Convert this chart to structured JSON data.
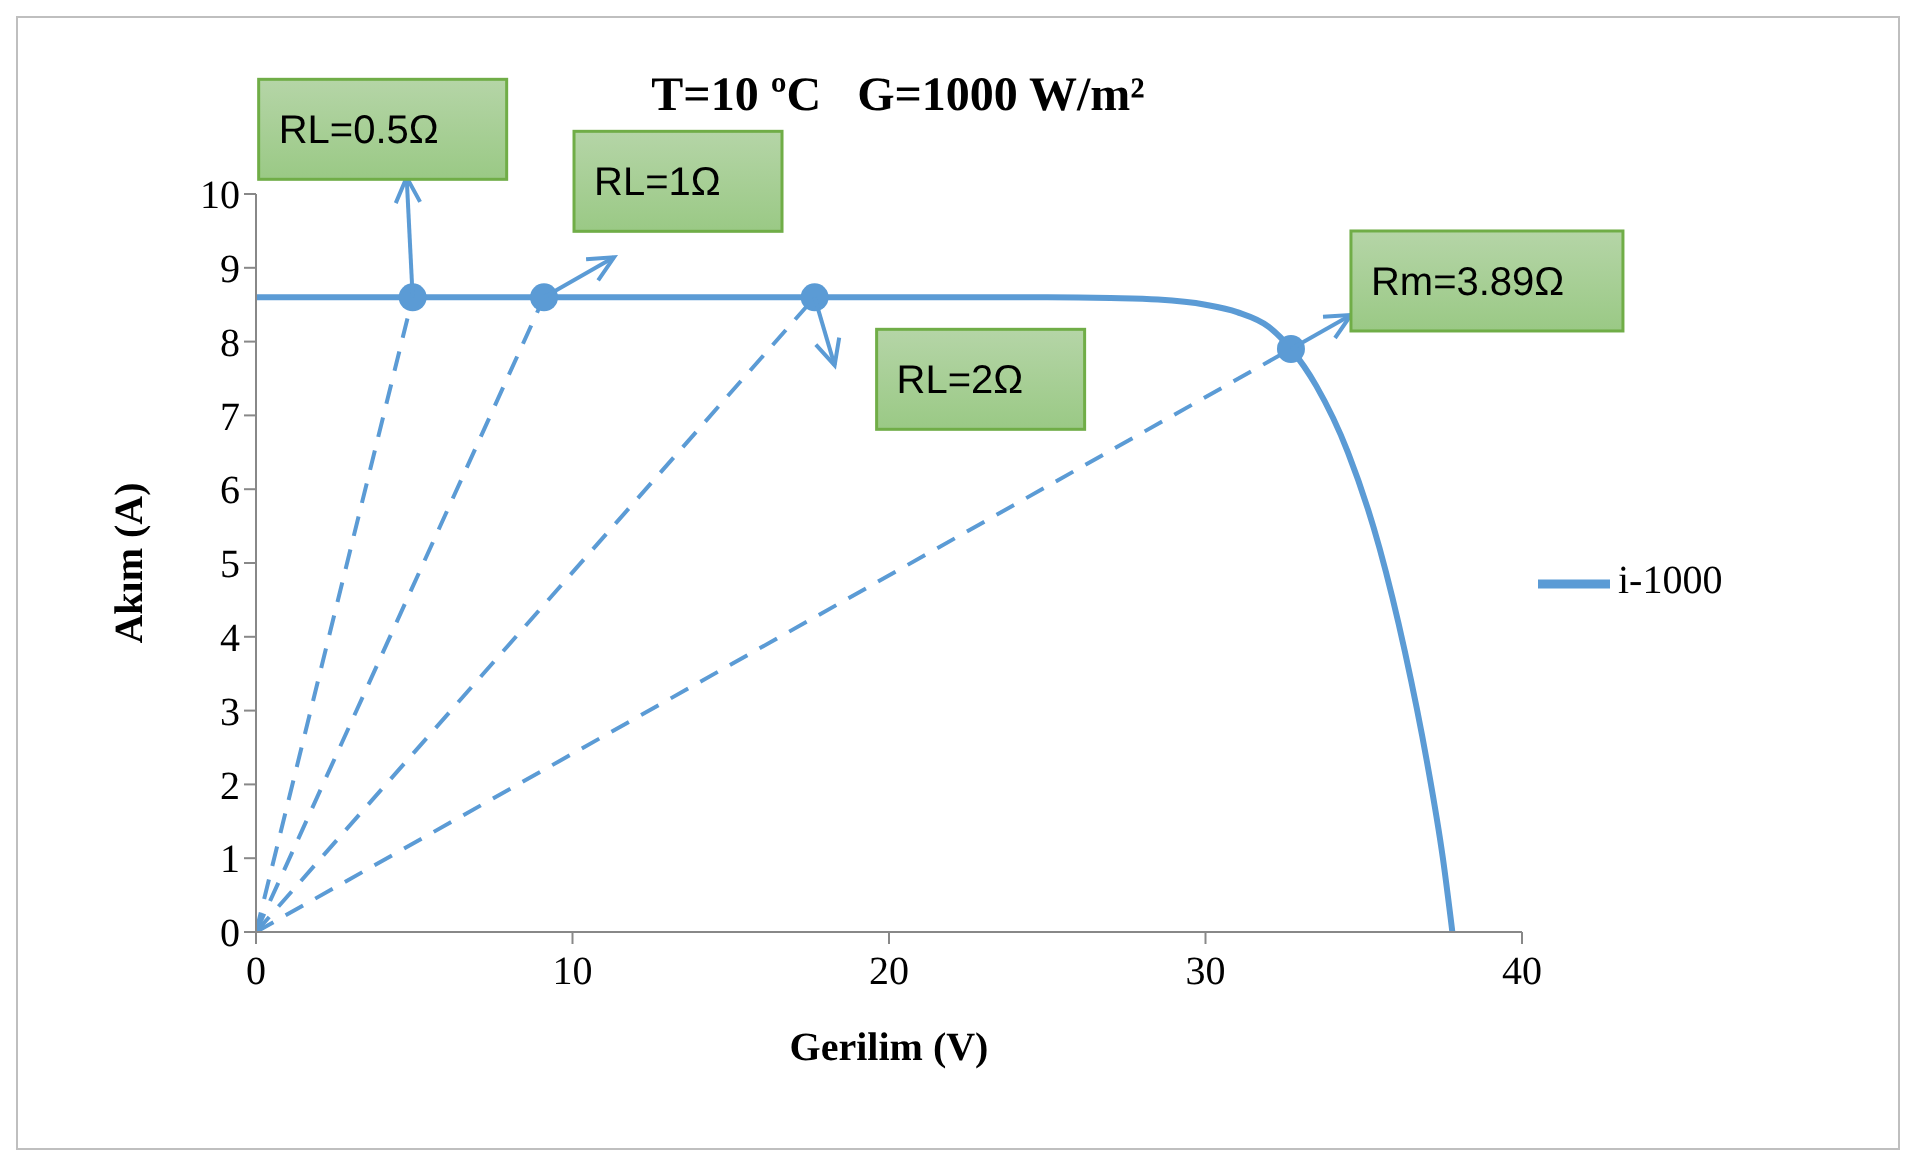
{
  "chart_data": {
    "type": "line",
    "title": "T=10 ºC   G=1000 W/m²",
    "xlabel": "Gerilim (V)",
    "ylabel": "Akım (A)",
    "xlim": [
      0,
      40
    ],
    "xticks": [
      0,
      10,
      20,
      30,
      40
    ],
    "ylim": [
      0,
      10
    ],
    "yticks": [
      0,
      1,
      2,
      3,
      4,
      5,
      6,
      7,
      8,
      9,
      10
    ],
    "grid": false,
    "legend": "right",
    "marker": "none",
    "line_style": "solid",
    "series": [
      {
        "name": "i-1000",
        "color": "#5b9bd5",
        "x": [
          0,
          5,
          10,
          15,
          20,
          25,
          27,
          28.5,
          30,
          31,
          32,
          32.7,
          33.5,
          34.5,
          35.5,
          36.3,
          37,
          37.5,
          37.8
        ],
        "values": [
          8.6,
          8.6,
          8.6,
          8.6,
          8.6,
          8.6,
          8.59,
          8.57,
          8.5,
          8.4,
          8.2,
          7.9,
          7.4,
          6.5,
          5.2,
          3.8,
          2.3,
          1.0,
          0
        ]
      },
      {
        "color": "#5b9bd5",
        "line_style": "dashed",
        "x": [
          0,
          4.95
        ],
        "values": [
          0,
          8.6
        ]
      },
      {
        "color": "#5b9bd5",
        "line_style": "dashed",
        "x": [
          0,
          9.1
        ],
        "values": [
          0,
          8.6
        ]
      },
      {
        "color": "#5b9bd5",
        "line_style": "dashed",
        "x": [
          0,
          17.65
        ],
        "values": [
          0,
          8.6
        ]
      },
      {
        "color": "#5b9bd5",
        "line_style": "dashed",
        "x": [
          0,
          32.7
        ],
        "values": [
          0,
          7.9
        ]
      },
      {
        "type": "scatter",
        "color": "#5b9bd5",
        "marker": "circle",
        "x": [
          4.95,
          9.1,
          17.65,
          32.7
        ],
        "values": [
          8.6,
          8.6,
          8.6,
          7.9
        ]
      }
    ],
    "annotations": [
      {
        "text": "RL=0.5Ω",
        "x": 4.95,
        "y": 8.6
      },
      {
        "text": "RL=1Ω",
        "x": 9.1,
        "y": 8.6
      },
      {
        "text": "RL=2Ω",
        "x": 17.65,
        "y": 8.6
      },
      {
        "text": "Rm=3.89Ω",
        "x": 32.7,
        "y": 7.9
      }
    ]
  }
}
